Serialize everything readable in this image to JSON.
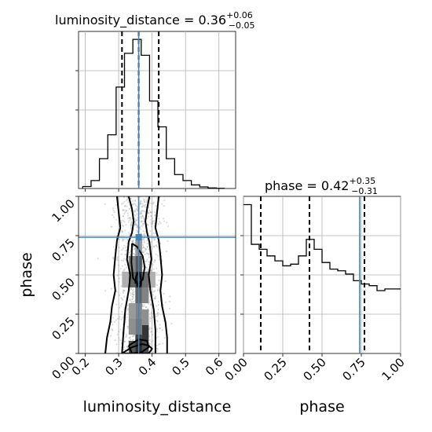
{
  "chart_data": [
    {
      "type": "histogram",
      "panel": "luminosity_distance-marginal",
      "title": {
        "main": "luminosity_distance = 0.36",
        "sup": "+0.06",
        "sub": "−0.05"
      },
      "xlim": [
        0.18,
        0.65
      ],
      "grid": true,
      "bins_x": [
        0.205,
        0.23,
        0.255,
        0.28,
        0.305,
        0.33,
        0.355,
        0.38,
        0.405,
        0.43,
        0.455,
        0.48,
        0.505,
        0.53,
        0.555,
        0.58,
        0.605
      ],
      "counts": [
        0.01,
        0.04,
        0.15,
        0.27,
        0.51,
        0.68,
        0.75,
        0.67,
        0.44,
        0.31,
        0.15,
        0.07,
        0.04,
        0.018,
        0.008,
        0.003,
        0.001
      ],
      "quantile_lines": [
        0.31,
        0.36,
        0.42
      ],
      "truth": 0.36,
      "truth_color": "#4682b4"
    },
    {
      "type": "scatter",
      "panel": "joint-2d",
      "xlim": [
        0.18,
        0.65
      ],
      "ylim": [
        0.0,
        1.0
      ],
      "xticks": [
        "0.2",
        "0.3",
        "0.4",
        "0.5",
        "0.6"
      ],
      "yticks": [
        "0.00",
        "0.25",
        "0.50",
        "0.75",
        "1.00"
      ],
      "xlabel": "luminosity_distance",
      "ylabel": "phase",
      "grid": true,
      "truth": [
        0.36,
        0.74
      ],
      "truth_color": "#4682b4",
      "contours": [
        {
          "x": [
            0.33,
            0.34,
            0.345,
            0.34,
            0.33,
            0.325,
            0.335,
            0.33,
            0.32,
            0.315,
            0.31
          ],
          "y": [
            1.0,
            0.92,
            0.84,
            0.77,
            0.71,
            0.6,
            0.5,
            0.4,
            0.28,
            0.15,
            0.0
          ]
        },
        {
          "x": [
            0.392,
            0.385,
            0.38,
            0.385,
            0.392,
            0.398,
            0.39,
            0.395,
            0.405,
            0.41,
            0.41
          ],
          "y": [
            1.0,
            0.92,
            0.84,
            0.77,
            0.71,
            0.6,
            0.5,
            0.4,
            0.28,
            0.15,
            0.0
          ]
        },
        {
          "x": [
            0.295,
            0.3,
            0.305,
            0.295,
            0.29,
            0.285,
            0.29,
            0.28,
            0.275,
            0.265,
            0.26
          ],
          "y": [
            1.0,
            0.9,
            0.8,
            0.72,
            0.62,
            0.5,
            0.4,
            0.3,
            0.2,
            0.1,
            0.0
          ]
        },
        {
          "x": [
            0.42,
            0.415,
            0.41,
            0.42,
            0.425,
            0.43,
            0.425,
            0.43,
            0.44,
            0.445,
            0.445
          ],
          "y": [
            1.0,
            0.9,
            0.8,
            0.72,
            0.62,
            0.5,
            0.4,
            0.3,
            0.2,
            0.1,
            0.0
          ]
        },
        {
          "x": [
            0.34,
            0.355,
            0.372,
            0.378,
            0.372,
            0.358,
            0.343,
            0.338,
            0.34
          ],
          "y": [
            0.7,
            0.68,
            0.62,
            0.55,
            0.47,
            0.44,
            0.48,
            0.58,
            0.7
          ]
        },
        {
          "x": [
            0.353,
            0.36,
            0.367,
            0.368,
            0.36,
            0.352,
            0.35,
            0.353
          ],
          "y": [
            0.46,
            0.42,
            0.44,
            0.47,
            0.52,
            0.49,
            0.45,
            0.46
          ]
        },
        {
          "x": [
            0.31,
            0.34,
            0.37,
            0.39,
            0.4,
            0.39,
            0.33,
            0.31,
            0.31
          ],
          "y": [
            0.0,
            0.04,
            0.06,
            0.05,
            0.03,
            0.0,
            0.0,
            0.0,
            0.0
          ]
        },
        {
          "x": [
            0.33,
            0.36,
            0.385,
            0.39,
            0.37,
            0.34,
            0.33
          ],
          "y": [
            0.05,
            0.09,
            0.08,
            0.04,
            0.01,
            0.0,
            0.05
          ]
        }
      ],
      "density_cells": [
        {
          "x": 0.36,
          "y": 0.47,
          "level": 0.95
        },
        {
          "x": 0.34,
          "y": 0.47,
          "level": 0.7
        },
        {
          "x": 0.38,
          "y": 0.47,
          "level": 0.65
        },
        {
          "x": 0.36,
          "y": 0.57,
          "level": 0.75
        },
        {
          "x": 0.36,
          "y": 0.37,
          "level": 0.7
        },
        {
          "x": 0.34,
          "y": 0.57,
          "level": 0.55
        },
        {
          "x": 0.38,
          "y": 0.37,
          "level": 0.55
        },
        {
          "x": 0.36,
          "y": 0.27,
          "level": 0.55
        },
        {
          "x": 0.34,
          "y": 0.27,
          "level": 0.45
        },
        {
          "x": 0.38,
          "y": 0.13,
          "level": 0.9
        },
        {
          "x": 0.36,
          "y": 0.07,
          "level": 0.85
        },
        {
          "x": 0.36,
          "y": 0.03,
          "level": 0.95
        },
        {
          "x": 0.34,
          "y": 0.03,
          "level": 0.75
        },
        {
          "x": 0.38,
          "y": 0.03,
          "level": 0.8
        },
        {
          "x": 0.36,
          "y": 0.67,
          "level": 0.45
        },
        {
          "x": 0.34,
          "y": 0.17,
          "level": 0.5
        },
        {
          "x": 0.38,
          "y": 0.23,
          "level": 0.5
        },
        {
          "x": 0.32,
          "y": 0.47,
          "level": 0.35
        },
        {
          "x": 0.4,
          "y": 0.47,
          "level": 0.35
        },
        {
          "x": 0.36,
          "y": 0.17,
          "level": 0.6
        }
      ]
    },
    {
      "type": "histogram",
      "panel": "phase-marginal",
      "title": {
        "main": "phase = 0.42",
        "sup": "+0.35",
        "sub": "−0.31"
      },
      "xlim": [
        0.0,
        1.0
      ],
      "xticks": [
        "0.00",
        "0.25",
        "0.50",
        "0.75",
        "1.00"
      ],
      "xlabel": "phase",
      "grid": true,
      "bins_x": [
        0.025,
        0.075,
        0.125,
        0.175,
        0.225,
        0.275,
        0.325,
        0.375,
        0.425,
        0.475,
        0.525,
        0.575,
        0.625,
        0.675,
        0.725,
        0.775,
        0.825,
        0.875,
        0.925,
        0.975
      ],
      "counts": [
        0.9,
        0.66,
        0.63,
        0.59,
        0.56,
        0.53,
        0.54,
        0.59,
        0.69,
        0.63,
        0.55,
        0.51,
        0.5,
        0.48,
        0.44,
        0.42,
        0.41,
        0.38,
        0.39,
        0.39
      ],
      "quantile_lines": [
        0.11,
        0.42,
        0.77
      ],
      "truth": 0.74,
      "truth_color": "#4682b4"
    }
  ]
}
